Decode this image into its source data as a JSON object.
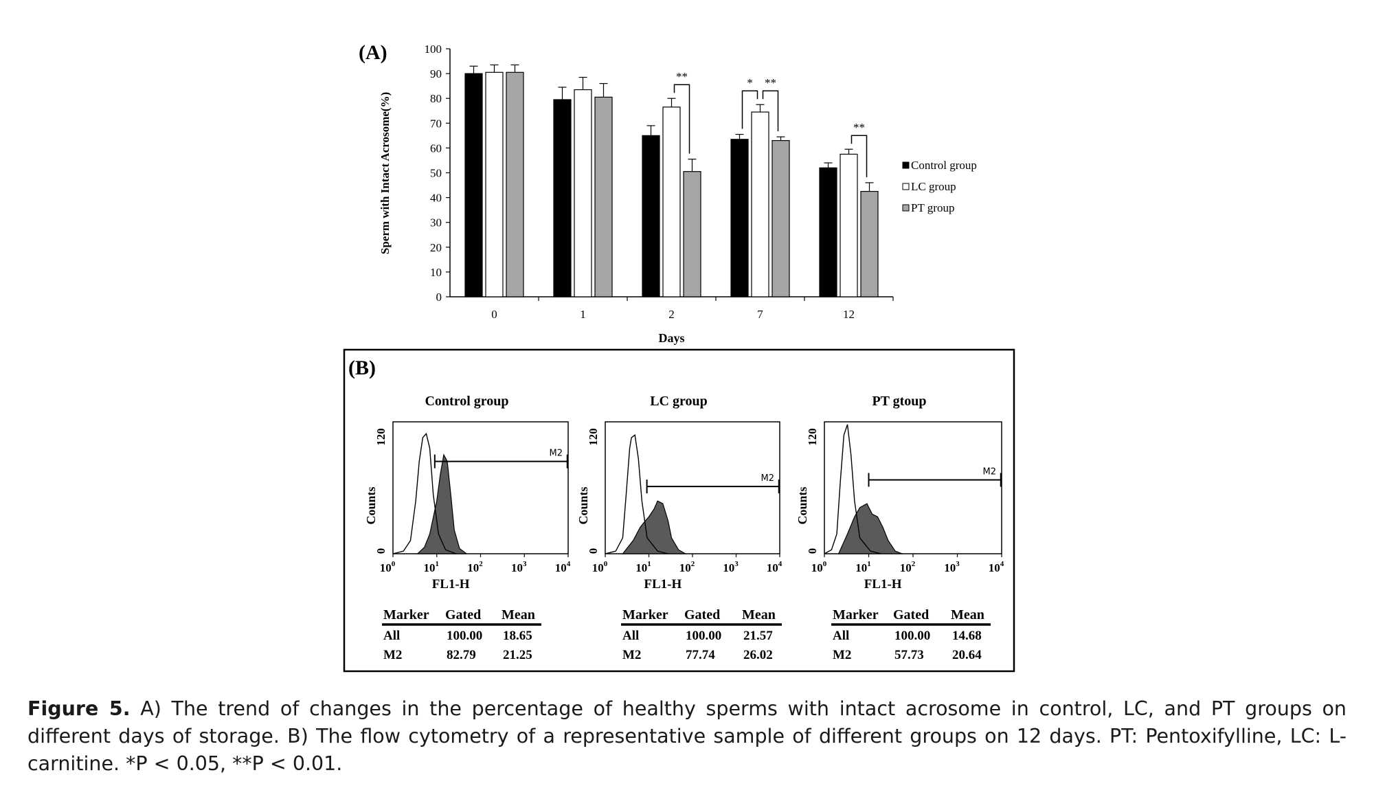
{
  "chart_data": [
    {
      "panel": "(A)",
      "type": "bar",
      "xlabel": "Days",
      "ylabel": "Sperm with Intact Acrosome(%)",
      "ylim": [
        0,
        100
      ],
      "yticks": [
        "0",
        "10",
        "20",
        "30",
        "40",
        "50",
        "60",
        "70",
        "80",
        "90",
        "100"
      ],
      "categories": [
        "0",
        "1",
        "2",
        "7",
        "12"
      ],
      "series": [
        {
          "name": "Control group",
          "color": "#000000",
          "values": [
            90,
            79.5,
            65,
            63.5,
            52
          ],
          "errors": [
            3,
            5,
            4,
            2,
            2
          ]
        },
        {
          "name": "LC group",
          "color": "#ffffff",
          "values": [
            90.5,
            83.5,
            76.5,
            74.5,
            57.5
          ],
          "errors": [
            3,
            5,
            3.5,
            3,
            2
          ]
        },
        {
          "name": "PT group",
          "color": "#a6a6a6",
          "values": [
            90.5,
            80.5,
            50.5,
            63,
            42.5
          ],
          "errors": [
            3,
            5.5,
            5,
            1.5,
            3.5
          ]
        }
      ],
      "legend_position": "right",
      "significance": [
        {
          "category": "2",
          "between": [
            "LC group",
            "PT group"
          ],
          "label": "**"
        },
        {
          "category": "7",
          "between": [
            "Control group",
            "LC group"
          ],
          "label": "*"
        },
        {
          "category": "7",
          "between": [
            "LC group",
            "PT group"
          ],
          "label": "**"
        },
        {
          "category": "12",
          "between": [
            "LC group",
            "PT group"
          ],
          "label": "**"
        }
      ]
    },
    {
      "panel": "(B)",
      "type": "histogram",
      "plots": [
        {
          "title": "Control group",
          "xlabel": "FL1-H",
          "ylabel": "Counts",
          "ymin_label": "0",
          "ymax_label": "120",
          "marker": "M2",
          "marker_from": 9,
          "marker_to": 10000,
          "stats": {
            "headers": [
              "Marker",
              "Gated",
              "Mean"
            ],
            "rows": [
              [
                "All",
                "100.00",
                "18.65"
              ],
              [
                "M2",
                "82.79",
                "21.25"
              ]
            ]
          }
        },
        {
          "title": "LC group",
          "xlabel": "FL1-H",
          "ylabel": "Counts",
          "ymin_label": "0",
          "ymax_label": "120",
          "marker": "M2",
          "marker_from": 9,
          "marker_to": 10000,
          "stats": {
            "headers": [
              "Marker",
              "Gated",
              "Mean"
            ],
            "rows": [
              [
                "All",
                "100.00",
                "21.57"
              ],
              [
                "M2",
                "77.74",
                "26.02"
              ]
            ]
          }
        },
        {
          "title": "PT gtoup",
          "xlabel": "FL1-H",
          "ylabel": "Counts",
          "ymin_label": "0",
          "ymax_label": "120",
          "marker": "M2",
          "marker_from": 10,
          "marker_to": 10000,
          "stats": {
            "headers": [
              "Marker",
              "Gated",
              "Mean"
            ],
            "rows": [
              [
                "All",
                "100.00",
                "14.68"
              ],
              [
                "M2",
                "57.73",
                "20.64"
              ]
            ]
          }
        }
      ],
      "x_tick_labels": [
        {
          "base": "10",
          "exp": "0"
        },
        {
          "base": "10",
          "exp": "1"
        },
        {
          "base": "10",
          "exp": "2"
        },
        {
          "base": "10",
          "exp": "3"
        },
        {
          "base": "10",
          "exp": "4"
        }
      ]
    }
  ],
  "caption": {
    "label": "Figure 5.",
    "text": "A) The trend of changes in the percentage of healthy sperms with intact acrosome in control, LC, and PT groups on different days of storage. B) The flow cytometry of a representative sample of different groups on 12 days. PT: Pentoxifylline, LC: L-carnitine. *P < 0.05, **P < 0.01."
  }
}
